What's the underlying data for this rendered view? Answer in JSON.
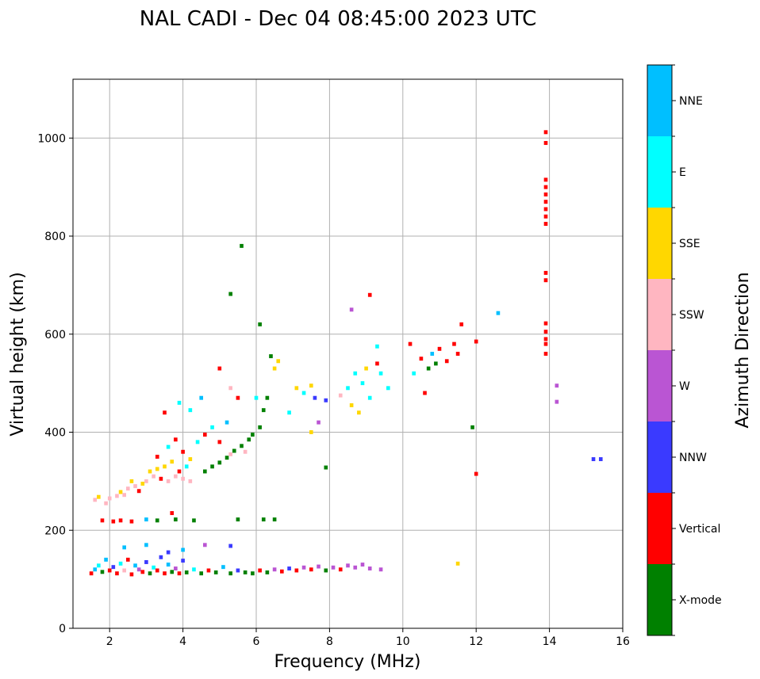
{
  "chart_data": {
    "type": "scatter",
    "title": "NAL CADI - Dec 04 08:45:00 2023 UTC",
    "xlabel": "Frequency (MHz)",
    "ylabel": "Virtual height (km)",
    "xlim": [
      1,
      16
    ],
    "ylim": [
      0,
      1120
    ],
    "xticks": [
      2,
      4,
      6,
      8,
      10,
      12,
      14,
      16
    ],
    "yticks": [
      0,
      200,
      400,
      600,
      800,
      1000
    ],
    "grid": true,
    "colorbar": {
      "label": "Azimuth Direction",
      "categories": [
        "X-mode",
        "Vertical",
        "NNW",
        "W",
        "SSW",
        "SSE",
        "E",
        "NNE"
      ],
      "colors": [
        "#008000",
        "#ff0000",
        "#3a3aff",
        "#ba55d3",
        "#ffb6c1",
        "#ffd700",
        "#00ffff",
        "#00bfff"
      ]
    },
    "cell_size": [
      0.1,
      8
    ],
    "points_format": "[frequency_MHz, virtual_height_km, category_index]",
    "points": [
      [
        1.5,
        112,
        1
      ],
      [
        1.6,
        120,
        7
      ],
      [
        1.7,
        128,
        6
      ],
      [
        1.8,
        115,
        0
      ],
      [
        1.9,
        140,
        7
      ],
      [
        2.0,
        118,
        1
      ],
      [
        2.1,
        125,
        2
      ],
      [
        2.2,
        112,
        1
      ],
      [
        2.3,
        132,
        6
      ],
      [
        2.4,
        118,
        4
      ],
      [
        2.5,
        140,
        1
      ],
      [
        2.6,
        110,
        1
      ],
      [
        2.7,
        128,
        7
      ],
      [
        2.8,
        120,
        3
      ],
      [
        2.9,
        115,
        1
      ],
      [
        3.0,
        135,
        2
      ],
      [
        3.1,
        112,
        0
      ],
      [
        3.2,
        124,
        6
      ],
      [
        3.3,
        118,
        1
      ],
      [
        3.4,
        145,
        2
      ],
      [
        3.5,
        112,
        1
      ],
      [
        3.6,
        130,
        7
      ],
      [
        3.7,
        115,
        0
      ],
      [
        3.8,
        122,
        3
      ],
      [
        3.9,
        112,
        1
      ],
      [
        4.0,
        138,
        2
      ],
      [
        4.1,
        114,
        0
      ],
      [
        4.3,
        120,
        6
      ],
      [
        4.5,
        112,
        0
      ],
      [
        4.7,
        118,
        1
      ],
      [
        4.9,
        114,
        0
      ],
      [
        5.1,
        125,
        7
      ],
      [
        5.3,
        112,
        0
      ],
      [
        5.5,
        118,
        2
      ],
      [
        5.7,
        114,
        0
      ],
      [
        5.9,
        112,
        0
      ],
      [
        6.1,
        118,
        1
      ],
      [
        6.3,
        114,
        0
      ],
      [
        6.5,
        120,
        3
      ],
      [
        6.7,
        116,
        1
      ],
      [
        6.9,
        122,
        2
      ],
      [
        7.1,
        118,
        1
      ],
      [
        7.3,
        124,
        3
      ],
      [
        7.5,
        120,
        1
      ],
      [
        7.7,
        126,
        3
      ],
      [
        7.9,
        118,
        0
      ],
      [
        8.1,
        124,
        3
      ],
      [
        8.3,
        120,
        1
      ],
      [
        8.5,
        128,
        3
      ],
      [
        8.7,
        124,
        3
      ],
      [
        8.9,
        130,
        3
      ],
      [
        9.1,
        122,
        3
      ],
      [
        9.4,
        120,
        3
      ],
      [
        2.4,
        165,
        7
      ],
      [
        3.0,
        170,
        7
      ],
      [
        3.6,
        155,
        2
      ],
      [
        4.0,
        160,
        7
      ],
      [
        4.6,
        170,
        3
      ],
      [
        5.3,
        168,
        2
      ],
      [
        11.5,
        132,
        5
      ],
      [
        1.6,
        262,
        4
      ],
      [
        1.7,
        268,
        5
      ],
      [
        1.9,
        255,
        4
      ],
      [
        2.0,
        265,
        4
      ],
      [
        2.2,
        270,
        4
      ],
      [
        2.3,
        278,
        5
      ],
      [
        2.4,
        272,
        4
      ],
      [
        2.5,
        285,
        4
      ],
      [
        2.6,
        300,
        5
      ],
      [
        2.7,
        290,
        4
      ],
      [
        2.8,
        280,
        1
      ],
      [
        2.9,
        295,
        5
      ],
      [
        3.0,
        300,
        4
      ],
      [
        3.1,
        320,
        5
      ],
      [
        3.2,
        310,
        4
      ],
      [
        3.3,
        325,
        5
      ],
      [
        3.4,
        305,
        1
      ],
      [
        3.5,
        330,
        5
      ],
      [
        3.6,
        300,
        4
      ],
      [
        3.7,
        340,
        5
      ],
      [
        3.8,
        310,
        4
      ],
      [
        3.9,
        320,
        1
      ],
      [
        4.0,
        305,
        4
      ],
      [
        4.1,
        330,
        6
      ],
      [
        4.2,
        300,
        4
      ],
      [
        3.3,
        350,
        1
      ],
      [
        3.6,
        370,
        6
      ],
      [
        3.8,
        385,
        1
      ],
      [
        4.0,
        360,
        1
      ],
      [
        4.2,
        345,
        5
      ],
      [
        4.4,
        380,
        6
      ],
      [
        4.6,
        395,
        1
      ],
      [
        4.8,
        410,
        6
      ],
      [
        5.0,
        380,
        1
      ],
      [
        5.2,
        420,
        7
      ],
      [
        3.5,
        440,
        1
      ],
      [
        3.9,
        460,
        6
      ],
      [
        4.2,
        445,
        6
      ],
      [
        4.5,
        470,
        7
      ],
      [
        5.0,
        530,
        1
      ],
      [
        5.3,
        490,
        4
      ],
      [
        5.5,
        470,
        1
      ],
      [
        4.6,
        320,
        0
      ],
      [
        4.8,
        330,
        0
      ],
      [
        5.0,
        338,
        0
      ],
      [
        5.2,
        348,
        0
      ],
      [
        5.3,
        355,
        4
      ],
      [
        5.4,
        362,
        0
      ],
      [
        5.6,
        372,
        0
      ],
      [
        5.7,
        360,
        4
      ],
      [
        5.8,
        385,
        0
      ],
      [
        5.9,
        395,
        0
      ],
      [
        6.1,
        410,
        0
      ],
      [
        6.2,
        445,
        0
      ],
      [
        6.0,
        470,
        6
      ],
      [
        6.3,
        470,
        0
      ],
      [
        6.4,
        555,
        0
      ],
      [
        6.5,
        530,
        5
      ],
      [
        6.6,
        545,
        5
      ],
      [
        6.1,
        620,
        0
      ],
      [
        5.6,
        780,
        0
      ],
      [
        5.3,
        682,
        0
      ],
      [
        1.8,
        220,
        1
      ],
      [
        2.1,
        218,
        1
      ],
      [
        2.3,
        220,
        1
      ],
      [
        2.6,
        218,
        1
      ],
      [
        3.0,
        222,
        7
      ],
      [
        3.3,
        220,
        0
      ],
      [
        3.7,
        235,
        1
      ],
      [
        3.8,
        222,
        0
      ],
      [
        4.3,
        220,
        0
      ],
      [
        5.5,
        222,
        0
      ],
      [
        6.2,
        222,
        0
      ],
      [
        6.5,
        222,
        0
      ],
      [
        7.9,
        328,
        0
      ],
      [
        6.9,
        440,
        6
      ],
      [
        7.1,
        490,
        5
      ],
      [
        7.3,
        480,
        6
      ],
      [
        7.5,
        495,
        5
      ],
      [
        7.6,
        470,
        2
      ],
      [
        7.9,
        465,
        2
      ],
      [
        7.7,
        420,
        3
      ],
      [
        7.5,
        400,
        5
      ],
      [
        8.3,
        475,
        4
      ],
      [
        8.5,
        490,
        6
      ],
      [
        8.6,
        455,
        5
      ],
      [
        8.7,
        520,
        6
      ],
      [
        8.8,
        440,
        5
      ],
      [
        8.9,
        500,
        6
      ],
      [
        9.0,
        530,
        5
      ],
      [
        9.1,
        470,
        6
      ],
      [
        9.3,
        540,
        1
      ],
      [
        9.4,
        520,
        6
      ],
      [
        9.3,
        575,
        6
      ],
      [
        9.6,
        490,
        6
      ],
      [
        8.6,
        650,
        3
      ],
      [
        9.1,
        680,
        1
      ],
      [
        10.2,
        580,
        1
      ],
      [
        10.3,
        520,
        6
      ],
      [
        10.5,
        550,
        1
      ],
      [
        10.6,
        480,
        1
      ],
      [
        10.7,
        530,
        0
      ],
      [
        10.8,
        560,
        7
      ],
      [
        10.9,
        540,
        0
      ],
      [
        11.0,
        570,
        1
      ],
      [
        11.2,
        545,
        1
      ],
      [
        11.4,
        580,
        1
      ],
      [
        11.5,
        560,
        1
      ],
      [
        11.6,
        620,
        1
      ],
      [
        12.0,
        585,
        1
      ],
      [
        12.0,
        315,
        1
      ],
      [
        11.9,
        410,
        0
      ],
      [
        12.6,
        643,
        7
      ],
      [
        13.9,
        1012,
        1
      ],
      [
        13.9,
        990,
        1
      ],
      [
        13.9,
        915,
        1
      ],
      [
        13.9,
        900,
        1
      ],
      [
        13.9,
        885,
        1
      ],
      [
        13.9,
        870,
        1
      ],
      [
        13.9,
        855,
        1
      ],
      [
        13.9,
        840,
        1
      ],
      [
        13.9,
        825,
        1
      ],
      [
        13.9,
        710,
        1
      ],
      [
        13.9,
        725,
        1
      ],
      [
        13.9,
        622,
        1
      ],
      [
        13.9,
        605,
        1
      ],
      [
        13.9,
        590,
        1
      ],
      [
        13.9,
        580,
        1
      ],
      [
        13.9,
        560,
        1
      ],
      [
        14.2,
        495,
        3
      ],
      [
        14.2,
        462,
        3
      ],
      [
        15.2,
        345,
        2
      ],
      [
        15.4,
        345,
        2
      ]
    ]
  }
}
